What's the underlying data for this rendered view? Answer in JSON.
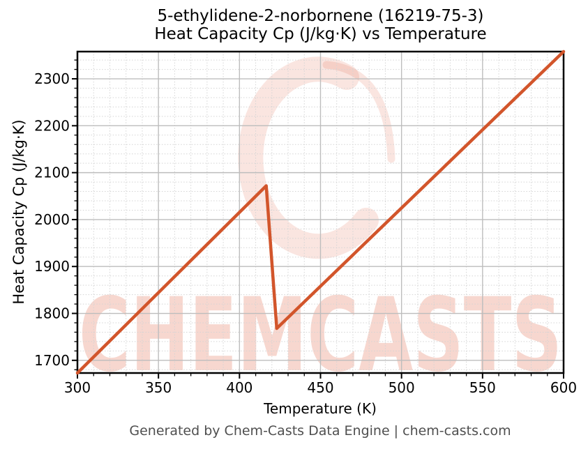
{
  "title": {
    "line1": "5-ethylidene-2-norbornene (16219-75-3)",
    "line2": "Heat Capacity Cp (J/kg·K) vs Temperature"
  },
  "footer": "Generated by Chem-Casts Data Engine | chem-casts.com",
  "watermark": {
    "logo_letter": "C",
    "text": "CHEMCASTS"
  },
  "colors": {
    "line": "#d2552b",
    "watermark_logo": "rgba(224,96,64,0.16)",
    "watermark_text": "rgba(224,96,64,0.25)",
    "grid_major": "#bdbdbd",
    "grid_minor": "#d4d4d4",
    "axis": "#000000",
    "footer_text": "#4f4f4f"
  },
  "chart_data": {
    "type": "line",
    "title": "5-ethylidene-2-norbornene (16219-75-3)\nHeat Capacity Cp (J/kg·K) vs Temperature",
    "xlabel": "Temperature (K)",
    "ylabel": "Heat Capacity Cp (J/kg·K)",
    "xlim": [
      300,
      600
    ],
    "ylim": [
      1673,
      2358
    ],
    "x_ticks": [
      300,
      350,
      400,
      450,
      500,
      550,
      600
    ],
    "y_ticks": [
      1700,
      1800,
      1900,
      2000,
      2100,
      2200,
      2300
    ],
    "x_minor_step": 10,
    "y_minor_step": 20,
    "grid": "major solid + minor dashed, full box spines, ticks bottom/left only",
    "legend": "none",
    "series": [
      {
        "name": "Heat Capacity Cp (J/kg·K)",
        "points": [
          [
            300,
            1673
          ],
          [
            416.5,
            2072
          ],
          [
            423,
            1768
          ],
          [
            600,
            2358
          ]
        ],
        "note": "linear rise, sharp drop at ~416.5-423 K (transition), linear rise to 600 K"
      }
    ]
  }
}
